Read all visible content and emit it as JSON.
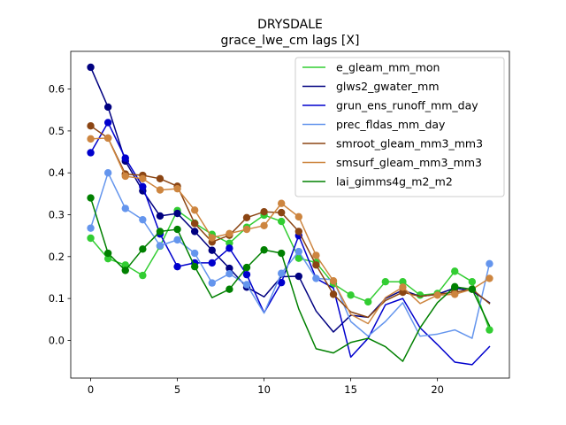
{
  "chart_data": {
    "type": "line",
    "title": "DRYSDALE",
    "subtitle": "grace_lwe_cm lags [X]",
    "xlabel": "",
    "ylabel": "",
    "xlim": [
      -1.15,
      24.15
    ],
    "ylim": [
      -0.09,
      0.69
    ],
    "xticks": [
      0,
      5,
      10,
      15,
      20
    ],
    "yticks": [
      0.0,
      0.1,
      0.2,
      0.3,
      0.4,
      0.5,
      0.6
    ],
    "ytick_labels": [
      "0.0",
      "0.1",
      "0.2",
      "0.3",
      "0.4",
      "0.5",
      "0.6"
    ],
    "legend_position": "top-right",
    "x": [
      0,
      1,
      2,
      3,
      4,
      5,
      6,
      7,
      8,
      9,
      10,
      11,
      12,
      13,
      14,
      15,
      16,
      17,
      18,
      19,
      20,
      21,
      22,
      23
    ],
    "series": [
      {
        "name": "e_gleam_mm_mon",
        "color": "#32cd32",
        "values": [
          0.244,
          0.195,
          0.18,
          0.155,
          0.225,
          0.31,
          0.28,
          0.253,
          0.232,
          0.27,
          0.299,
          0.284,
          0.196,
          0.186,
          0.135,
          0.108,
          0.092,
          0.14,
          0.14,
          0.108,
          0.112,
          0.165,
          0.14,
          0.025
        ],
        "markers": [
          0,
          1,
          2,
          3,
          4,
          5,
          6,
          7,
          8,
          9,
          10,
          11,
          12,
          13,
          14,
          15,
          16,
          17,
          18,
          19,
          20,
          21,
          22,
          23
        ]
      },
      {
        "name": "glws2_gwater_mm",
        "color": "#000080",
        "values": [
          0.652,
          0.557,
          0.428,
          0.357,
          0.297,
          0.303,
          0.26,
          0.215,
          0.172,
          0.127,
          0.104,
          0.152,
          0.153,
          0.07,
          0.02,
          0.06,
          0.055,
          0.1,
          0.12,
          0.105,
          0.11,
          0.125,
          0.118,
          0.09
        ],
        "markers": [
          0,
          1,
          2,
          3,
          4,
          5,
          6,
          7,
          8,
          9,
          12,
          21
        ]
      },
      {
        "name": "grun_ens_runoff_mm_day",
        "color": "#0000cd",
        "values": [
          0.448,
          0.52,
          0.435,
          0.367,
          0.254,
          0.176,
          0.185,
          0.185,
          0.22,
          0.157,
          0.066,
          0.138,
          0.25,
          0.148,
          0.125,
          -0.04,
          0.005,
          0.085,
          0.1,
          0.03,
          -0.01,
          -0.052,
          -0.058,
          -0.015
        ],
        "markers": [
          0,
          1,
          2,
          3,
          4,
          5,
          6,
          7,
          8,
          9,
          11,
          12
        ]
      },
      {
        "name": "prec_fldas_mm_day",
        "color": "#6495ed",
        "values": [
          0.268,
          0.4,
          0.315,
          0.288,
          0.226,
          0.24,
          0.208,
          0.137,
          0.159,
          0.133,
          0.065,
          0.16,
          0.212,
          0.148,
          0.145,
          0.045,
          0.01,
          0.045,
          0.09,
          0.01,
          0.015,
          0.025,
          0.005,
          0.183
        ],
        "markers": [
          0,
          1,
          2,
          3,
          4,
          5,
          6,
          7,
          8,
          9,
          11,
          12,
          13,
          23
        ]
      },
      {
        "name": "smroot_gleam_mm3_mm3",
        "color": "#8b4513",
        "values": [
          0.512,
          0.483,
          0.397,
          0.394,
          0.386,
          0.368,
          0.279,
          0.235,
          0.251,
          0.293,
          0.307,
          0.305,
          0.26,
          0.18,
          0.11,
          0.068,
          0.055,
          0.095,
          0.115,
          0.105,
          0.11,
          0.115,
          0.122,
          0.088
        ],
        "markers": [
          0,
          1,
          2,
          3,
          4,
          5,
          6,
          7,
          8,
          9,
          10,
          11,
          12,
          13,
          14,
          18,
          21,
          22
        ]
      },
      {
        "name": "smsurf_gleam_mm3_mm3",
        "color": "#cd853f",
        "values": [
          0.481,
          0.483,
          0.392,
          0.386,
          0.359,
          0.362,
          0.311,
          0.245,
          0.255,
          0.265,
          0.274,
          0.327,
          0.295,
          0.203,
          0.142,
          0.062,
          0.04,
          0.102,
          0.127,
          0.088,
          0.108,
          0.11,
          0.122,
          0.148
        ],
        "markers": [
          0,
          1,
          2,
          3,
          4,
          5,
          6,
          7,
          8,
          9,
          10,
          11,
          12,
          13,
          14,
          18,
          20,
          21,
          23
        ]
      },
      {
        "name": "lai_gimms4g_m2_m2",
        "color": "#008000",
        "values": [
          0.34,
          0.208,
          0.167,
          0.218,
          0.26,
          0.265,
          0.176,
          0.102,
          0.122,
          0.174,
          0.216,
          0.208,
          0.075,
          -0.02,
          -0.03,
          -0.005,
          0.005,
          -0.015,
          -0.05,
          0.03,
          0.09,
          0.128,
          0.122,
          0.035
        ],
        "markers": [
          0,
          1,
          2,
          3,
          4,
          5,
          6,
          8,
          9,
          10,
          11,
          21,
          22
        ]
      }
    ]
  }
}
